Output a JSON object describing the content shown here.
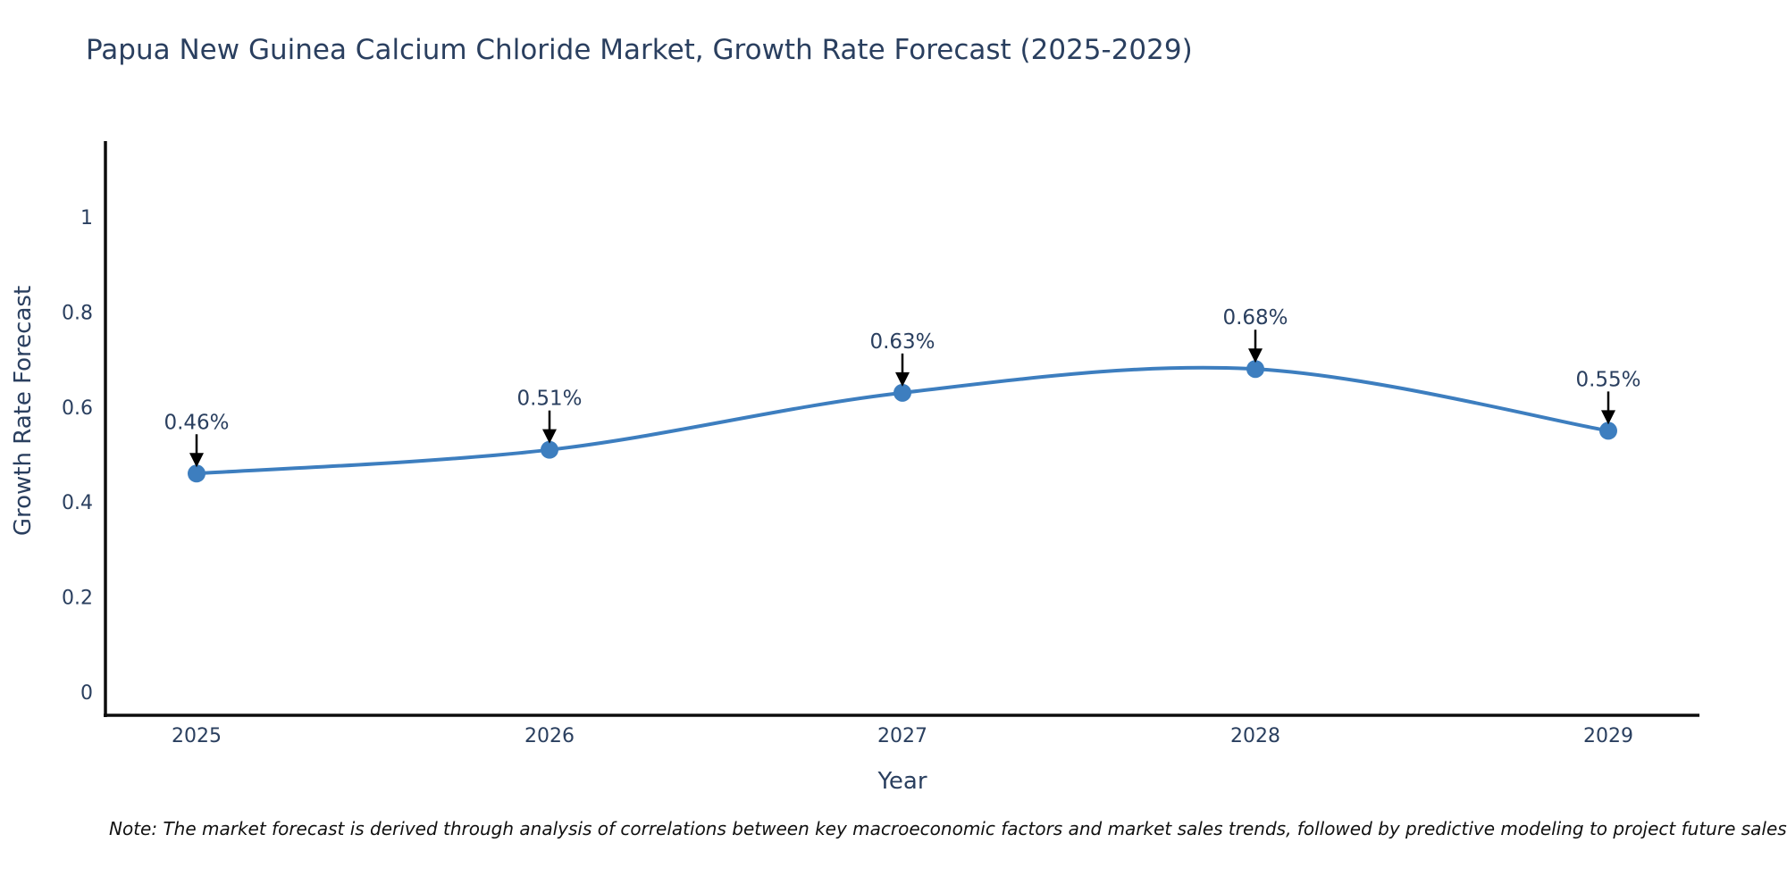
{
  "note": "Note: The market forecast is derived through analysis of correlations between key macroeconomic factors and market sales trends, followed by predictive modeling to project future sales",
  "colors": {
    "line": "#3d7ebf",
    "marker": "#3d7ebf",
    "axis_line": "#0d0d0d",
    "text": "#2a3f5f",
    "annotation_text": "#2a3f5f",
    "annotation_arrow": "#000000",
    "note_text": "#111111",
    "background": "#ffffff"
  },
  "chart_data": {
    "type": "line",
    "title": "Papua New Guinea Calcium Chloride Market, Growth Rate Forecast (2025-2029)",
    "xlabel": "Year",
    "ylabel": "Growth Rate Forecast",
    "x": [
      2025,
      2026,
      2027,
      2028,
      2029
    ],
    "categories": [
      "2025",
      "2026",
      "2027",
      "2028",
      "2029"
    ],
    "values": [
      0.46,
      0.51,
      0.63,
      0.68,
      0.55
    ],
    "point_labels": [
      "0.46%",
      "0.51%",
      "0.63%",
      "0.68%",
      "0.55%"
    ],
    "series_name": "Growth Rate Forecast",
    "line_shape": "spline",
    "markers": true,
    "grid": false,
    "legend_position": "none",
    "xlim": [
      2024.74,
      2029.27
    ],
    "ylim": [
      -0.05,
      1.16
    ],
    "yticks": [
      0,
      0.2,
      0.4,
      0.6,
      0.8,
      1
    ],
    "ytick_labels": [
      "0",
      "0.2",
      "0.4",
      "0.6",
      "0.8",
      "1"
    ],
    "xticks": [
      2025,
      2026,
      2027,
      2028,
      2029
    ],
    "xtick_labels": [
      "2025",
      "2026",
      "2027",
      "2028",
      "2029"
    ]
  }
}
